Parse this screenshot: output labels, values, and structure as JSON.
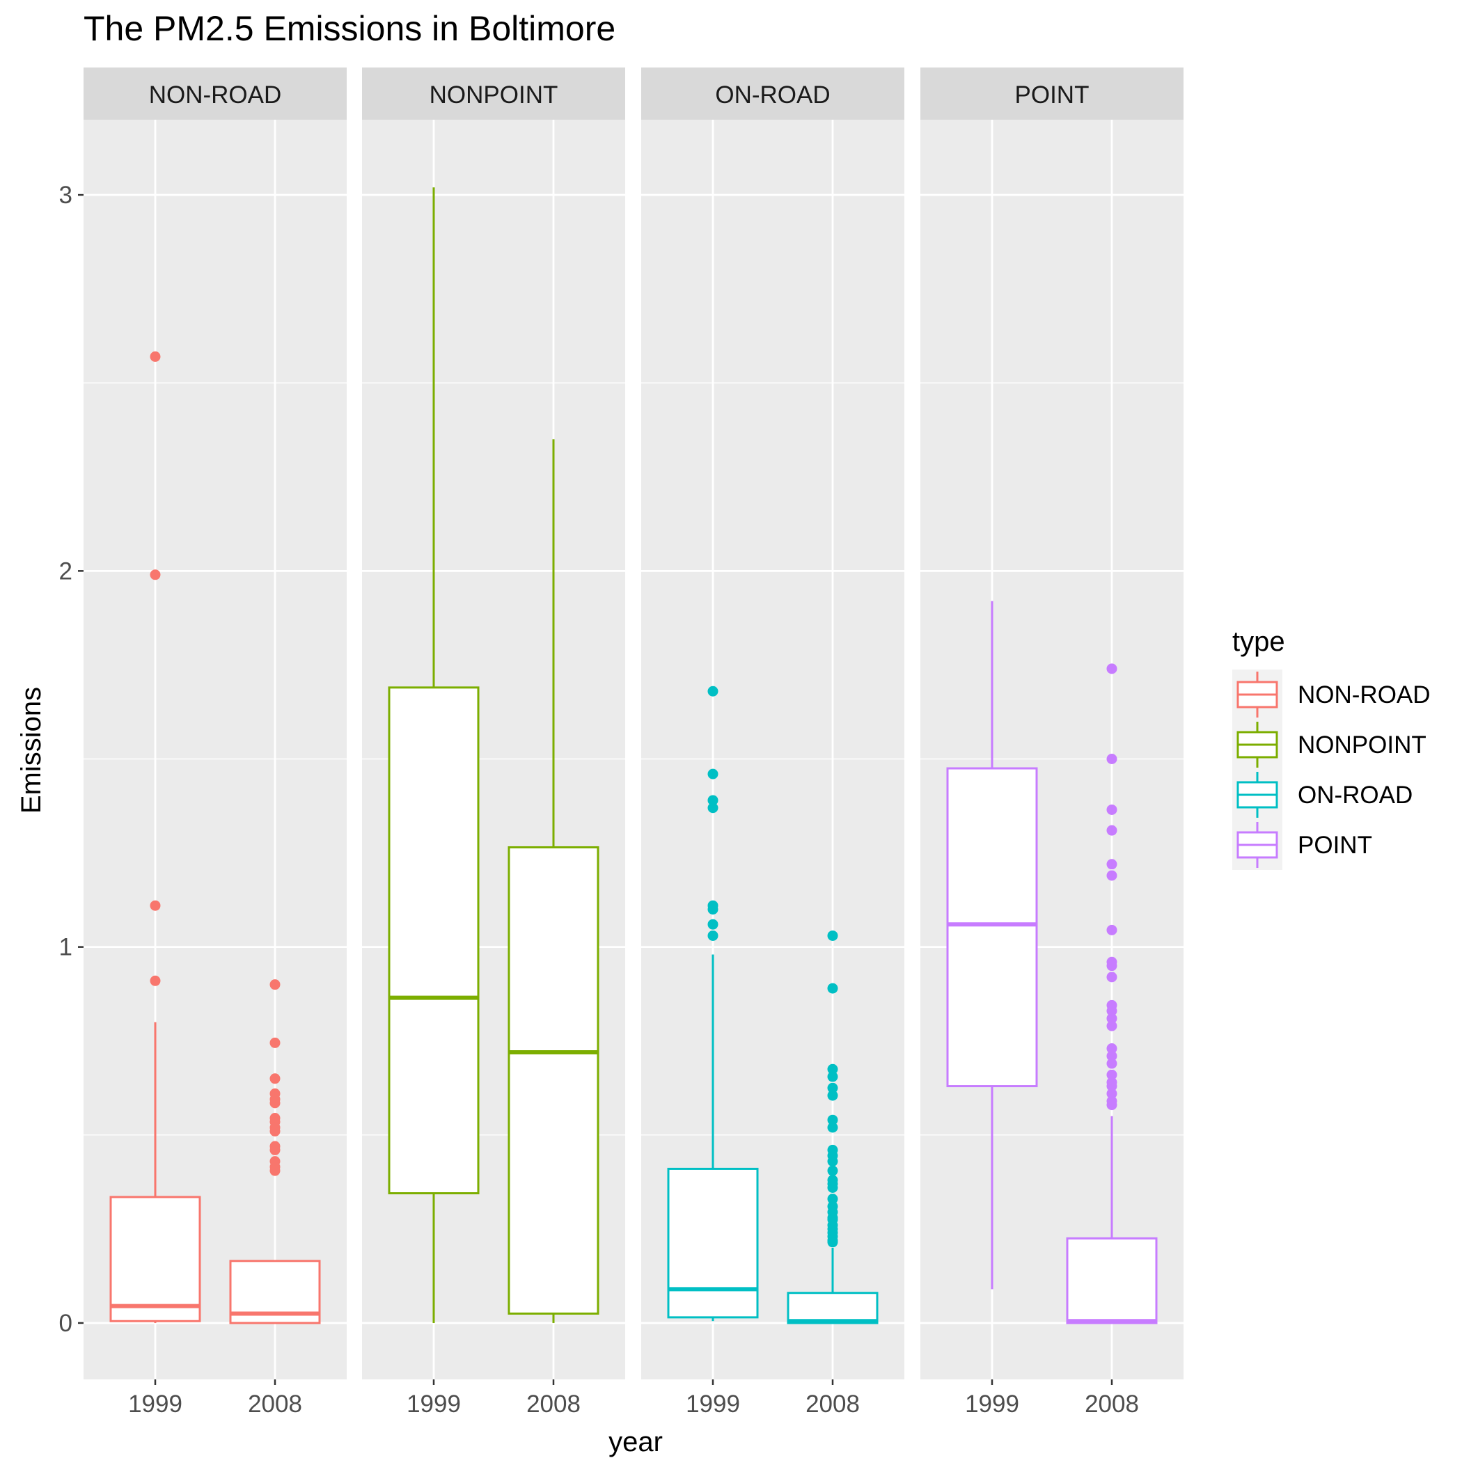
{
  "chart_data": {
    "type": "boxplot",
    "title": "The PM2.5 Emissions in Boltimore",
    "xlabel": "year",
    "ylabel": "Emissions",
    "ylim": [
      -0.15,
      3.2
    ],
    "yticks": [
      0,
      1,
      2,
      3
    ],
    "categories": [
      "1999",
      "2008"
    ],
    "grid": true,
    "legend": {
      "title": "type",
      "position": "right",
      "entries": [
        "NON-ROAD",
        "NONPOINT",
        "ON-ROAD",
        "POINT"
      ]
    },
    "colors": {
      "NON-ROAD": "#F8766D",
      "NONPOINT": "#7CAE00",
      "ON-ROAD": "#00BFC4",
      "POINT": "#C77CFF"
    },
    "facets": [
      {
        "name": "NON-ROAD",
        "boxes": [
          {
            "year": "1999",
            "min": 0.0,
            "q1": 0.005,
            "median": 0.045,
            "q3": 0.335,
            "max": 0.8,
            "outliers": [
              2.57,
              1.99,
              1.11,
              0.91
            ]
          },
          {
            "year": "2008",
            "min": 0.0,
            "q1": 0.0,
            "median": 0.025,
            "q3": 0.165,
            "max": 0.165,
            "outliers": [
              0.9,
              0.745,
              0.65,
              0.61,
              0.595,
              0.585,
              0.545,
              0.535,
              0.52,
              0.51,
              0.47,
              0.46,
              0.43,
              0.415,
              0.405
            ]
          }
        ]
      },
      {
        "name": "NONPOINT",
        "boxes": [
          {
            "year": "1999",
            "min": 0.0,
            "q1": 0.345,
            "median": 0.865,
            "q3": 1.69,
            "max": 3.02,
            "outliers": []
          },
          {
            "year": "2008",
            "min": 0.0,
            "q1": 0.025,
            "median": 0.72,
            "q3": 1.265,
            "max": 2.35,
            "outliers": []
          }
        ]
      },
      {
        "name": "ON-ROAD",
        "boxes": [
          {
            "year": "1999",
            "min": 0.005,
            "q1": 0.015,
            "median": 0.09,
            "q3": 0.41,
            "max": 0.98,
            "outliers": [
              1.68,
              1.46,
              1.39,
              1.37,
              1.11,
              1.1,
              1.06,
              1.03
            ]
          },
          {
            "year": "2008",
            "min": 0.0,
            "q1": 0.0,
            "median": 0.005,
            "q3": 0.08,
            "max": 0.2,
            "outliers": [
              1.03,
              0.89,
              0.675,
              0.655,
              0.625,
              0.605,
              0.54,
              0.52,
              0.46,
              0.445,
              0.43,
              0.405,
              0.38,
              0.37,
              0.36,
              0.33,
              0.31,
              0.295,
              0.28,
              0.275,
              0.26,
              0.25,
              0.24,
              0.23,
              0.22,
              0.215
            ]
          }
        ]
      },
      {
        "name": "POINT",
        "boxes": [
          {
            "year": "1999",
            "min": 0.09,
            "q1": 0.63,
            "median": 1.06,
            "q3": 1.475,
            "max": 1.92,
            "outliers": []
          },
          {
            "year": "2008",
            "min": 0.0,
            "q1": 0.0,
            "median": 0.005,
            "q3": 0.225,
            "max": 0.55,
            "outliers": [
              1.74,
              1.5,
              1.365,
              1.31,
              1.22,
              1.19,
              1.045,
              0.96,
              0.95,
              0.92,
              0.845,
              0.83,
              0.81,
              0.79,
              0.73,
              0.71,
              0.69,
              0.66,
              0.64,
              0.63,
              0.61,
              0.59,
              0.58
            ]
          }
        ]
      }
    ]
  }
}
